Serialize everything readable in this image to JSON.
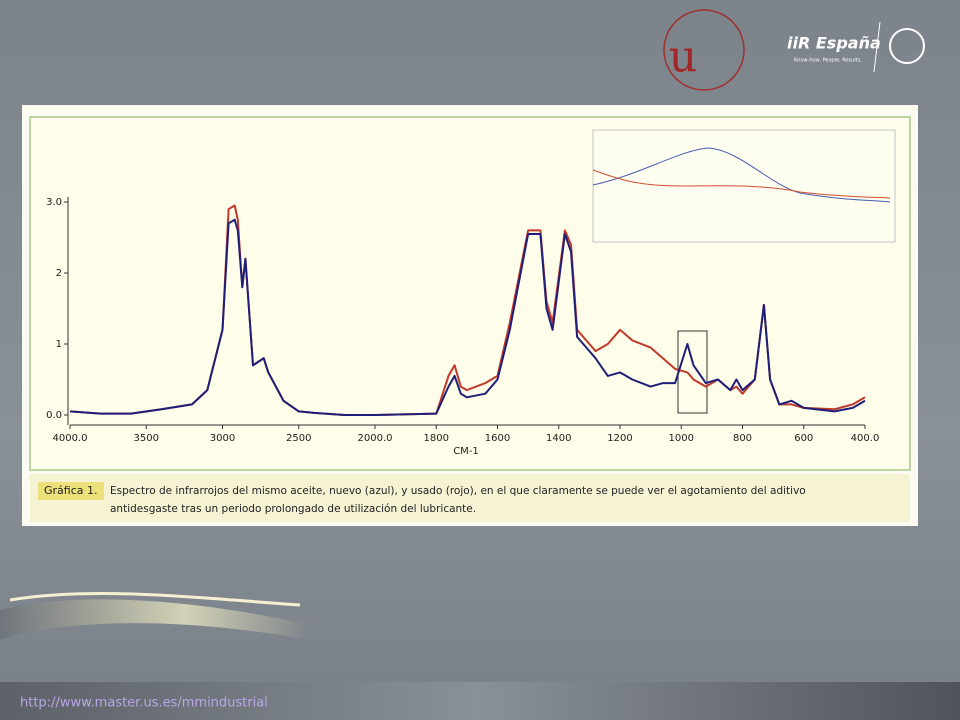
{
  "chart_data": {
    "type": "line",
    "x_label": "CM-1",
    "x": [
      4000,
      3800,
      3600,
      3400,
      3200,
      3100,
      3000,
      2960,
      2920,
      2900,
      2870,
      2850,
      2800,
      2730,
      2700,
      2600,
      2500,
      2400,
      2200,
      2000,
      1800,
      1760,
      1740,
      1720,
      1700,
      1640,
      1600,
      1560,
      1500,
      1460,
      1440,
      1420,
      1380,
      1360,
      1340,
      1300,
      1280,
      1240,
      1200,
      1160,
      1100,
      1060,
      1020,
      980,
      960,
      920,
      880,
      840,
      820,
      800,
      760,
      730,
      710,
      680,
      640,
      600,
      500,
      440,
      400
    ],
    "series": [
      {
        "name": "nuevo",
        "color": "#1f1f7a",
        "values": [
          0.05,
          0.02,
          0.02,
          0.08,
          0.15,
          0.35,
          1.2,
          2.7,
          2.75,
          2.6,
          1.8,
          2.2,
          0.7,
          0.8,
          0.6,
          0.2,
          0.05,
          0.03,
          0.0,
          0.0,
          0.02,
          0.4,
          0.55,
          0.3,
          0.25,
          0.3,
          0.5,
          1.2,
          2.55,
          2.55,
          1.5,
          1.2,
          2.55,
          2.3,
          1.1,
          0.9,
          0.8,
          0.55,
          0.6,
          0.5,
          0.4,
          0.45,
          0.45,
          1.0,
          0.7,
          0.45,
          0.5,
          0.35,
          0.5,
          0.35,
          0.5,
          1.55,
          0.5,
          0.15,
          0.2,
          0.1,
          0.05,
          0.1,
          0.2
        ]
      },
      {
        "name": "usado",
        "color": "#c0392b",
        "values": [
          0.05,
          0.02,
          0.02,
          0.08,
          0.15,
          0.35,
          1.2,
          2.9,
          2.95,
          2.75,
          1.8,
          2.2,
          0.7,
          0.8,
          0.6,
          0.2,
          0.05,
          0.03,
          0.0,
          0.0,
          0.02,
          0.55,
          0.7,
          0.4,
          0.35,
          0.45,
          0.55,
          1.3,
          2.6,
          2.6,
          1.6,
          1.3,
          2.6,
          2.4,
          1.2,
          1.0,
          0.9,
          1.0,
          1.2,
          1.05,
          0.95,
          0.8,
          0.65,
          0.6,
          0.5,
          0.4,
          0.5,
          0.35,
          0.4,
          0.3,
          0.5,
          1.55,
          0.5,
          0.15,
          0.15,
          0.1,
          0.08,
          0.15,
          0.25
        ]
      }
    ],
    "xlim": [
      4000,
      400
    ],
    "xticks": [
      {
        "value": 4000,
        "label": "4000.0"
      },
      3500,
      3000,
      2500,
      {
        "value": 2000,
        "label": "2000.0"
      },
      1800,
      1600,
      1400,
      1200,
      1000,
      800,
      600,
      {
        "value": 400,
        "label": "400.0"
      }
    ],
    "ylim": [
      0,
      3
    ],
    "yticks": [
      {
        "value": 0,
        "label": "0.0"
      },
      1,
      2,
      {
        "value": 3,
        "label": "3.0"
      }
    ],
    "caption_label": "Gráfica 1.",
    "caption": [
      "Espectro de infrarrojos del mismo aceite, nuevo (azul), y usado (rojo), en el que claramente se puede ver el agotamiento del aditivo",
      "antidesgaste tras un periodo prolongado de utilización del lubricante."
    ]
  },
  "slide": {
    "url": "http://www.master.us.es/mmindustrial",
    "logo_brand": "iiR España",
    "logo_tagline": "Know-how. People. Results."
  }
}
